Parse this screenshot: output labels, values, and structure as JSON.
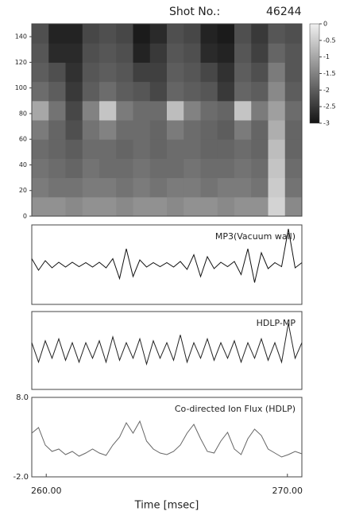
{
  "shot_label": "Shot No.:",
  "shot_number": "46244",
  "chart_data": [
    {
      "type": "heatmap",
      "xlim": [
        259.4,
        270.6
      ],
      "ylim": [
        0,
        150
      ],
      "yticks": [
        0,
        20,
        40,
        60,
        80,
        100,
        120,
        140
      ],
      "xbins": [
        259.4,
        260.1,
        260.8,
        261.5,
        262.2,
        262.9,
        263.6,
        264.3,
        265.0,
        265.7,
        266.4,
        267.1,
        267.8,
        268.5,
        269.2,
        269.9,
        270.6
      ],
      "ybins": [
        0,
        15,
        30,
        45,
        60,
        75,
        90,
        105,
        120,
        135,
        150
      ],
      "z": [
        [
          -1.3,
          -1.3,
          -1.4,
          -1.3,
          -1.3,
          -1.4,
          -1.3,
          -1.3,
          -1.4,
          -1.3,
          -1.3,
          -1.4,
          -1.3,
          -1.3,
          -0.4,
          -1.4
        ],
        [
          -1.6,
          -1.7,
          -1.7,
          -1.6,
          -1.6,
          -1.7,
          -1.6,
          -1.7,
          -1.6,
          -1.6,
          -1.7,
          -1.6,
          -1.6,
          -1.7,
          -0.5,
          -1.7
        ],
        [
          -1.7,
          -1.8,
          -1.9,
          -1.7,
          -1.8,
          -1.8,
          -1.7,
          -1.8,
          -1.8,
          -1.7,
          -1.8,
          -1.8,
          -1.7,
          -1.8,
          -0.6,
          -1.8
        ],
        [
          -1.8,
          -1.9,
          -2.0,
          -1.8,
          -1.8,
          -1.9,
          -1.8,
          -1.9,
          -1.8,
          -1.8,
          -1.9,
          -1.9,
          -1.8,
          -1.9,
          -0.7,
          -1.9
        ],
        [
          -1.6,
          -1.9,
          -2.2,
          -1.7,
          -1.5,
          -1.8,
          -1.8,
          -1.9,
          -1.6,
          -1.8,
          -1.9,
          -2.0,
          -1.6,
          -1.9,
          -0.9,
          -1.9
        ],
        [
          -1.0,
          -1.7,
          -2.3,
          -1.5,
          -0.6,
          -1.6,
          -1.8,
          -1.8,
          -0.7,
          -1.5,
          -1.8,
          -1.9,
          -0.6,
          -1.6,
          -1.1,
          -1.8
        ],
        [
          -1.8,
          -2.0,
          -2.5,
          -2.0,
          -1.8,
          -2.0,
          -2.1,
          -2.3,
          -1.9,
          -2.0,
          -2.1,
          -2.5,
          -1.9,
          -2.0,
          -1.4,
          -2.0
        ],
        [
          -2.0,
          -2.2,
          -2.6,
          -2.1,
          -2.0,
          -2.1,
          -2.4,
          -2.4,
          -2.0,
          -2.1,
          -2.3,
          -2.6,
          -2.0,
          -2.2,
          -1.6,
          -2.1
        ],
        [
          -2.1,
          -2.7,
          -2.7,
          -2.2,
          -2.1,
          -2.2,
          -2.8,
          -2.5,
          -2.1,
          -2.2,
          -2.7,
          -2.8,
          -2.1,
          -2.4,
          -1.9,
          -2.1
        ],
        [
          -2.2,
          -2.8,
          -2.8,
          -2.3,
          -2.2,
          -2.3,
          -2.9,
          -2.7,
          -2.2,
          -2.3,
          -2.8,
          -2.9,
          -2.2,
          -2.5,
          -2.1,
          -2.2
        ]
      ],
      "clim": [
        -3,
        0
      ],
      "colorbar_ticks": [
        0,
        -0.5,
        -1,
        -1.5,
        -2,
        -2.5,
        -3
      ]
    },
    {
      "type": "line",
      "title": "MP3(Vacuum wall)",
      "color": "#111111",
      "xlim": [
        259.4,
        270.6
      ],
      "ylim": [
        -1,
        1
      ],
      "x": [
        259.4,
        259.68,
        259.96,
        260.24,
        260.52,
        260.8,
        261.08,
        261.36,
        261.64,
        261.92,
        262.2,
        262.48,
        262.76,
        263.04,
        263.32,
        263.6,
        263.88,
        264.16,
        264.44,
        264.72,
        265.0,
        265.28,
        265.56,
        265.84,
        266.12,
        266.4,
        266.68,
        266.96,
        267.24,
        267.52,
        267.8,
        268.08,
        268.36,
        268.64,
        268.92,
        269.2,
        269.48,
        269.76,
        270.04,
        270.32,
        270.6
      ],
      "values": [
        0.15,
        -0.14,
        0.1,
        -0.08,
        0.06,
        -0.06,
        0.06,
        -0.05,
        0.05,
        -0.06,
        0.06,
        -0.08,
        0.15,
        -0.35,
        0.4,
        -0.3,
        0.12,
        -0.06,
        0.05,
        -0.05,
        0.05,
        -0.06,
        0.08,
        -0.12,
        0.25,
        -0.3,
        0.2,
        -0.1,
        0.06,
        -0.05,
        0.08,
        -0.25,
        0.4,
        -0.45,
        0.3,
        -0.1,
        0.05,
        -0.05,
        0.9,
        -0.08,
        0.05
      ]
    },
    {
      "type": "line",
      "title": "HDLP-MP",
      "color": "#222222",
      "xlim": [
        259.4,
        270.6
      ],
      "ylim": [
        -1,
        1
      ],
      "x": [
        259.4,
        259.68,
        259.96,
        260.24,
        260.52,
        260.8,
        261.08,
        261.36,
        261.64,
        261.92,
        262.2,
        262.48,
        262.76,
        263.04,
        263.32,
        263.6,
        263.88,
        264.16,
        264.44,
        264.72,
        265.0,
        265.28,
        265.56,
        265.84,
        266.12,
        266.4,
        266.68,
        266.96,
        267.24,
        267.52,
        267.8,
        268.08,
        268.36,
        268.64,
        268.92,
        269.2,
        269.48,
        269.76,
        270.04,
        270.32,
        270.6
      ],
      "values": [
        0.2,
        -0.3,
        0.25,
        -0.2,
        0.3,
        -0.25,
        0.2,
        -0.3,
        0.2,
        -0.2,
        0.25,
        -0.3,
        0.35,
        -0.25,
        0.2,
        -0.2,
        0.3,
        -0.35,
        0.25,
        -0.2,
        0.2,
        -0.25,
        0.4,
        -0.3,
        0.2,
        -0.2,
        0.3,
        -0.25,
        0.2,
        -0.2,
        0.25,
        -0.3,
        0.2,
        -0.2,
        0.3,
        -0.25,
        0.2,
        -0.3,
        0.7,
        -0.2,
        0.2
      ]
    },
    {
      "type": "line",
      "title": "Co-directed Ion Flux (HDLP)",
      "color": "#666666",
      "xlim": [
        259.4,
        270.6
      ],
      "ylim": [
        -2,
        8
      ],
      "yticks": [
        {
          "value": 8,
          "label": "8.0"
        },
        {
          "value": -2,
          "label": "-2.0"
        }
      ],
      "xticks": [
        {
          "value": 260,
          "label": "260.00"
        },
        {
          "value": 270,
          "label": "270.00"
        }
      ],
      "xlabel": "Time [msec]",
      "x": [
        259.4,
        259.68,
        259.96,
        260.24,
        260.52,
        260.8,
        261.08,
        261.36,
        261.64,
        261.92,
        262.2,
        262.48,
        262.76,
        263.04,
        263.32,
        263.6,
        263.88,
        264.16,
        264.44,
        264.72,
        265.0,
        265.28,
        265.56,
        265.84,
        266.12,
        266.4,
        266.68,
        266.96,
        267.24,
        267.52,
        267.8,
        268.08,
        268.36,
        268.64,
        268.92,
        269.2,
        269.48,
        269.76,
        270.04,
        270.32,
        270.6
      ],
      "values": [
        3.5,
        4.2,
        2.0,
        1.2,
        1.5,
        0.8,
        1.2,
        0.6,
        1.0,
        1.5,
        1.0,
        0.7,
        2.0,
        3.0,
        4.8,
        3.5,
        5.0,
        2.5,
        1.5,
        1.0,
        0.8,
        1.2,
        2.0,
        3.5,
        4.6,
        2.8,
        1.2,
        1.0,
        2.5,
        3.6,
        1.5,
        0.8,
        2.8,
        4.0,
        3.2,
        1.5,
        1.0,
        0.5,
        0.8,
        1.2,
        0.9
      ]
    }
  ]
}
